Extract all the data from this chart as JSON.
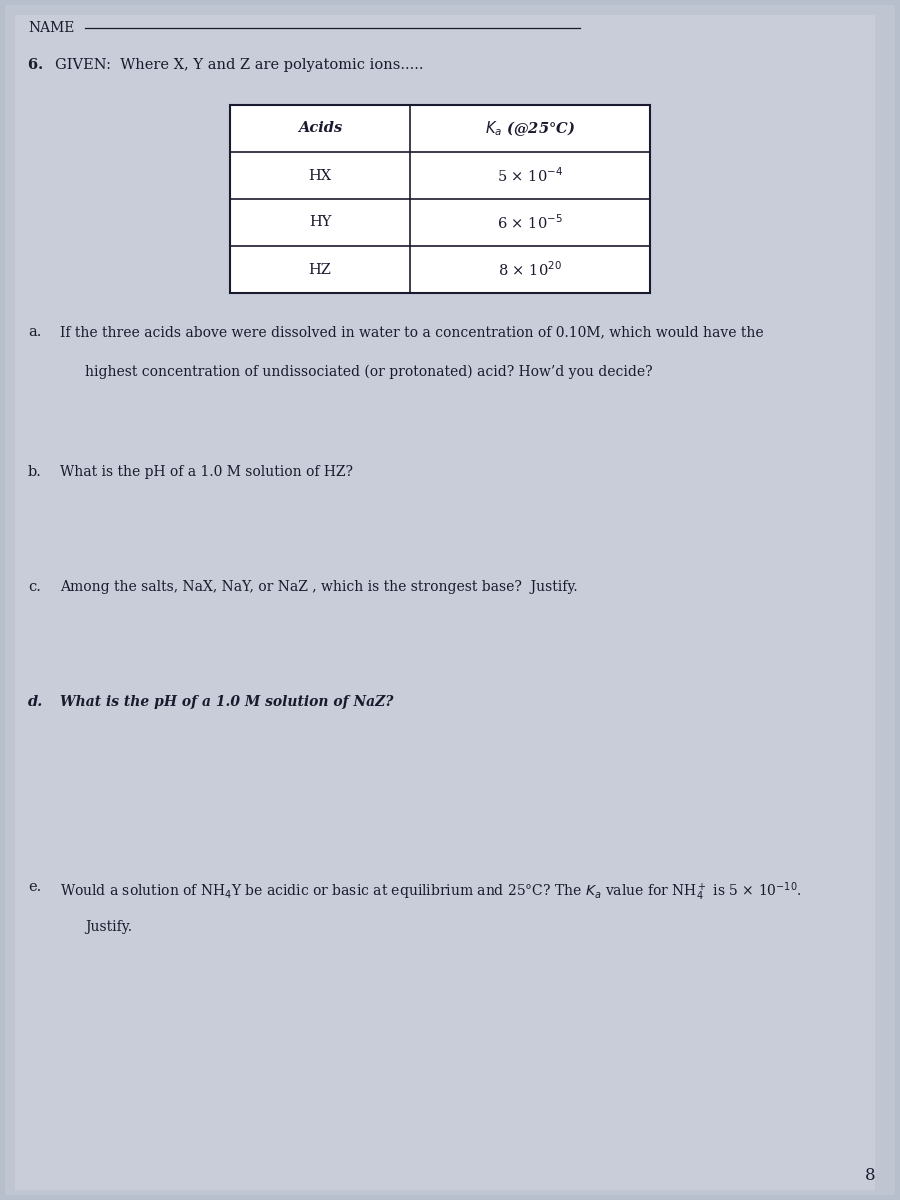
{
  "bg_color": "#b8bfcc",
  "page_color": "#c5cad6",
  "text_color": "#1a1a2e",
  "name_label": "NAME",
  "question_header": "6. GIVEN:  Where X, Y and Z are polyatomic ions.....",
  "table_col1_header": "Acids",
  "table_col2_header": "$K_a$ (@25°C)",
  "table_data": [
    [
      "HX",
      "5 × 10$^{-4}$"
    ],
    [
      "HY",
      "6 × 10$^{-5}$"
    ],
    [
      "HZ",
      "8 × 10$^{20}$"
    ]
  ],
  "qa_label": "a.",
  "qa_line1": "If the three acids above were dissolved in water to a concentration of 0.10M, which would have the",
  "qa_line2": "highest concentration of undissociated (or protonated) acid? How’d you decide?",
  "qb_label": "b.",
  "qb_text": "What is the pH of a 1.0 M solution of HZ?",
  "qc_label": "c.",
  "qc_text": "Among the salts, NaX, NaY, or NaZ , which is the strongest base?  Justify.",
  "qd_label": "d.",
  "qd_text": "What is the pH of a 1.0 M solution of NaZ?",
  "qe_label": "e.",
  "qe_line1": "Would a solution of NH$_4$Y be acidic or basic at equilibrium and 25°C? The $K_a$ value for NH$_4^+$ is 5 × 10$^{-10}$.",
  "qe_line2": "Justify.",
  "page_number": "8"
}
